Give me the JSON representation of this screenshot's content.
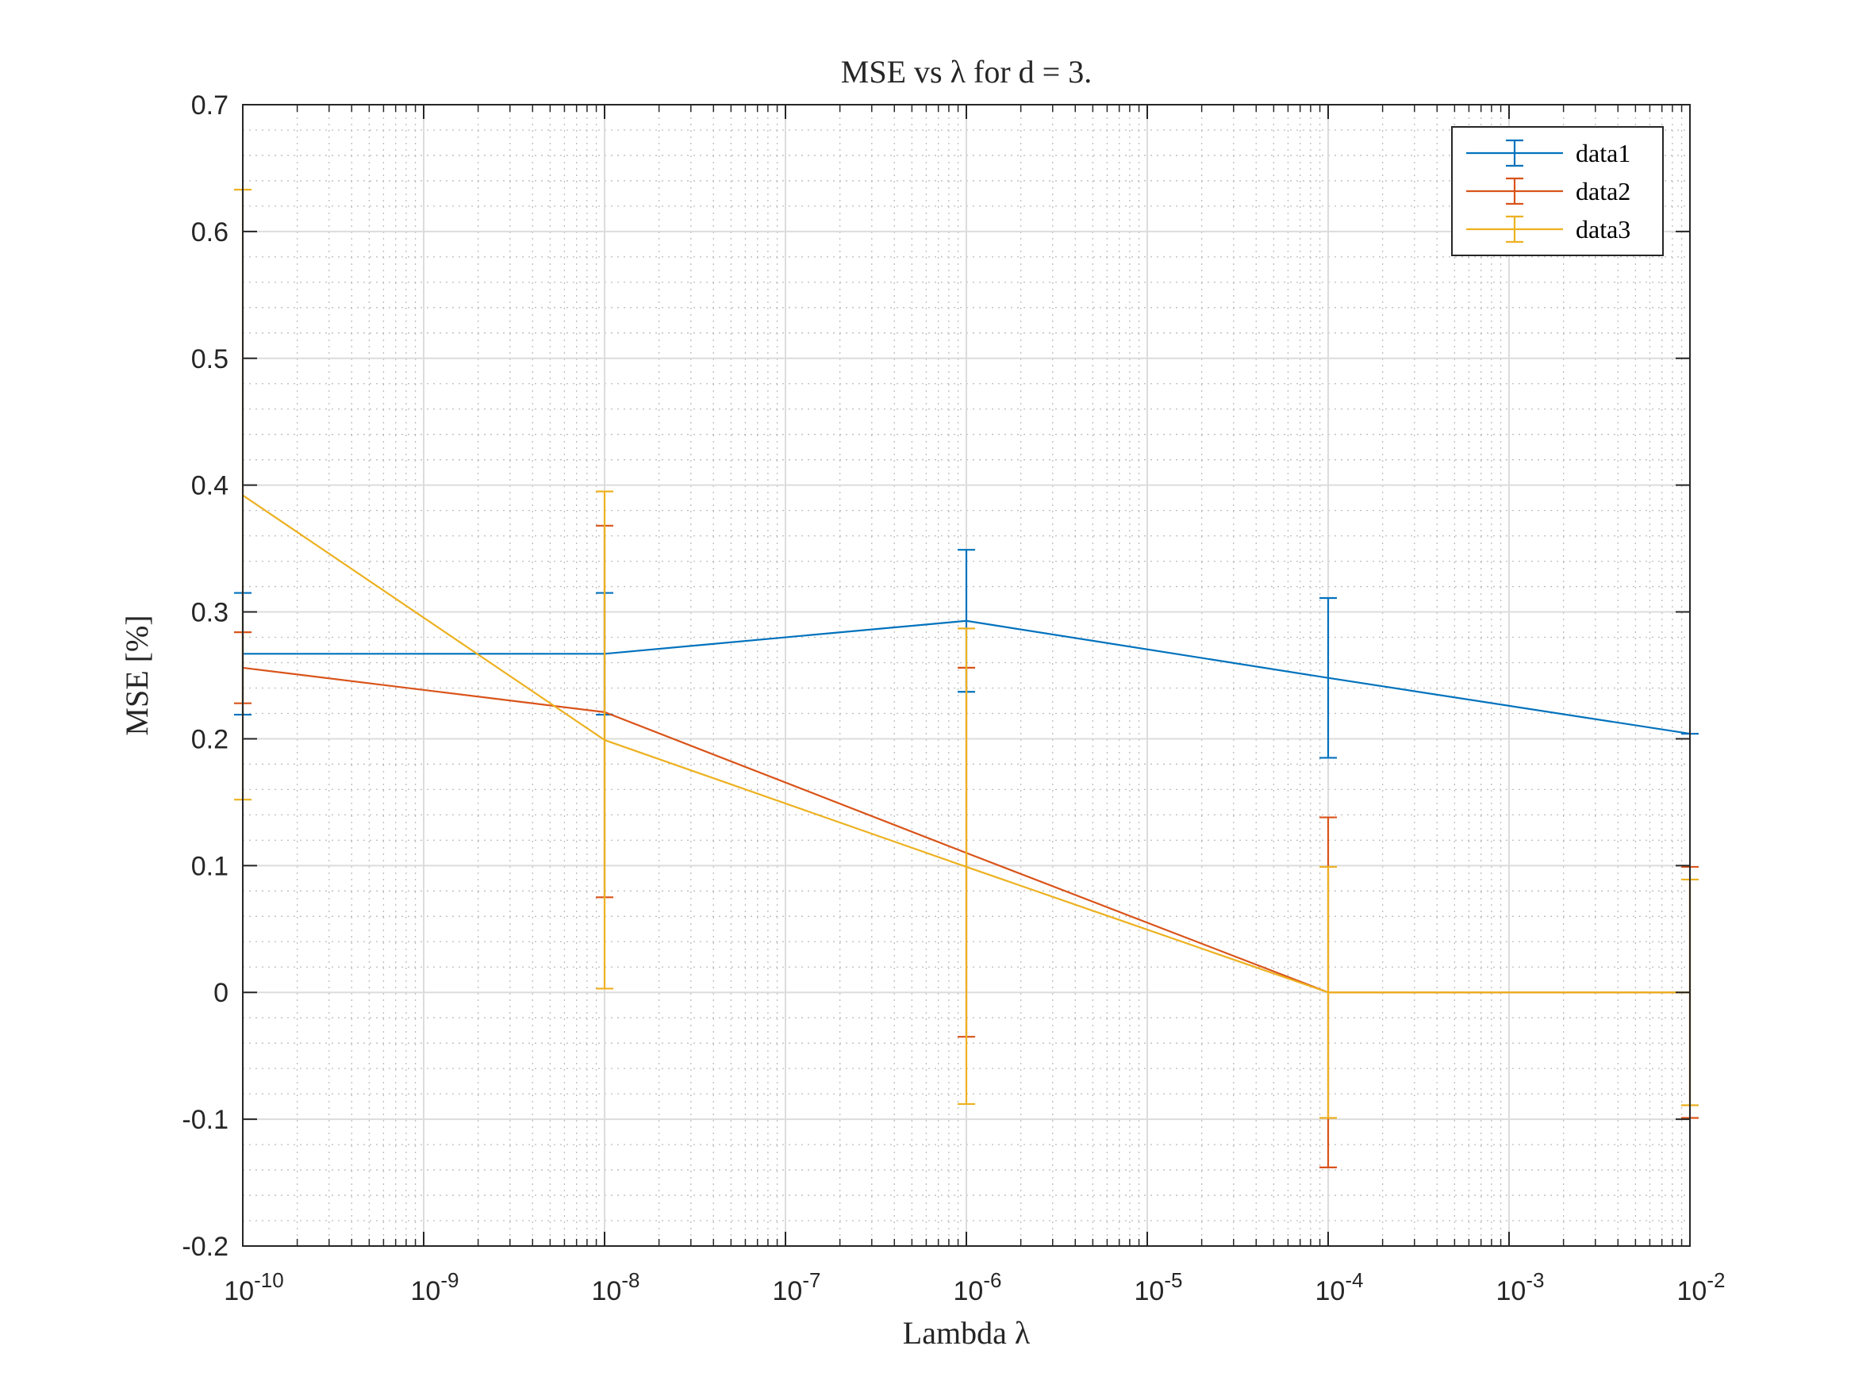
{
  "chart_data": {
    "type": "line",
    "title": "MSE vs λ for d = 3.",
    "xlabel": "Lambda λ",
    "ylabel": "MSE [%]",
    "x_scale": "log",
    "xlim": [
      1e-10,
      0.01
    ],
    "ylim": [
      -0.2,
      0.7
    ],
    "x": [
      1e-10,
      1e-08,
      1e-06,
      0.0001,
      0.01
    ],
    "x_tick_exponents": [
      "-10",
      "-9",
      "-8",
      "-7",
      "-6",
      "-5",
      "-4",
      "-3",
      "-2"
    ],
    "y_ticks": [
      "-0.2",
      "-0.1",
      "0",
      "0.1",
      "0.2",
      "0.3",
      "0.4",
      "0.5",
      "0.6",
      "0.7"
    ],
    "grid": true,
    "legend_position": "top-right",
    "series": [
      {
        "name": "data1",
        "color": "#0072BD",
        "values": [
          0.267,
          0.267,
          0.293,
          0.248,
          0.204
        ],
        "err_low": [
          0.219,
          0.219,
          0.237,
          0.185,
          0.204
        ],
        "err_high": [
          0.315,
          0.315,
          0.349,
          0.311,
          0.204
        ]
      },
      {
        "name": "data2",
        "color": "#D95319",
        "values": [
          0.256,
          0.221,
          0.11,
          0.0,
          0.0
        ],
        "err_low": [
          0.228,
          0.075,
          -0.035,
          -0.138,
          -0.099
        ],
        "err_high": [
          0.284,
          0.368,
          0.256,
          0.138,
          0.099
        ]
      },
      {
        "name": "data3",
        "color": "#EDB120",
        "values": [
          0.392,
          0.199,
          0.099,
          0.0,
          0.0
        ],
        "err_low": [
          0.152,
          0.003,
          -0.088,
          -0.099,
          -0.089
        ],
        "err_high": [
          0.633,
          0.395,
          0.287,
          0.099,
          0.089
        ]
      }
    ]
  }
}
